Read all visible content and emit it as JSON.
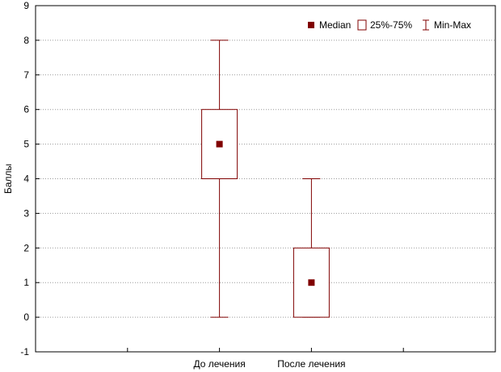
{
  "chart_data": {
    "type": "boxplot",
    "title": "",
    "xlabel": "",
    "ylabel": "Баллы",
    "ylim": [
      -1,
      9
    ],
    "yticks": [
      -1,
      0,
      1,
      2,
      3,
      4,
      5,
      6,
      7,
      8,
      9
    ],
    "grid": true,
    "legend_position": "top-right",
    "categories": [
      "До лечения",
      "После лечения"
    ],
    "boxes": [
      {
        "category": "До лечения",
        "median": 5,
        "q1": 4,
        "q3": 6,
        "min": 0,
        "max": 8
      },
      {
        "category": "После лечения",
        "median": 1,
        "q1": 0,
        "q3": 2,
        "min": 0,
        "max": 4
      }
    ],
    "legend": {
      "median": "Median",
      "box": "25%-75%",
      "whisker": "Min-Max"
    },
    "colors": {
      "series": "#800000",
      "grid": "#9a9a9a",
      "axis": "#000000",
      "background": "#ffffff"
    }
  }
}
